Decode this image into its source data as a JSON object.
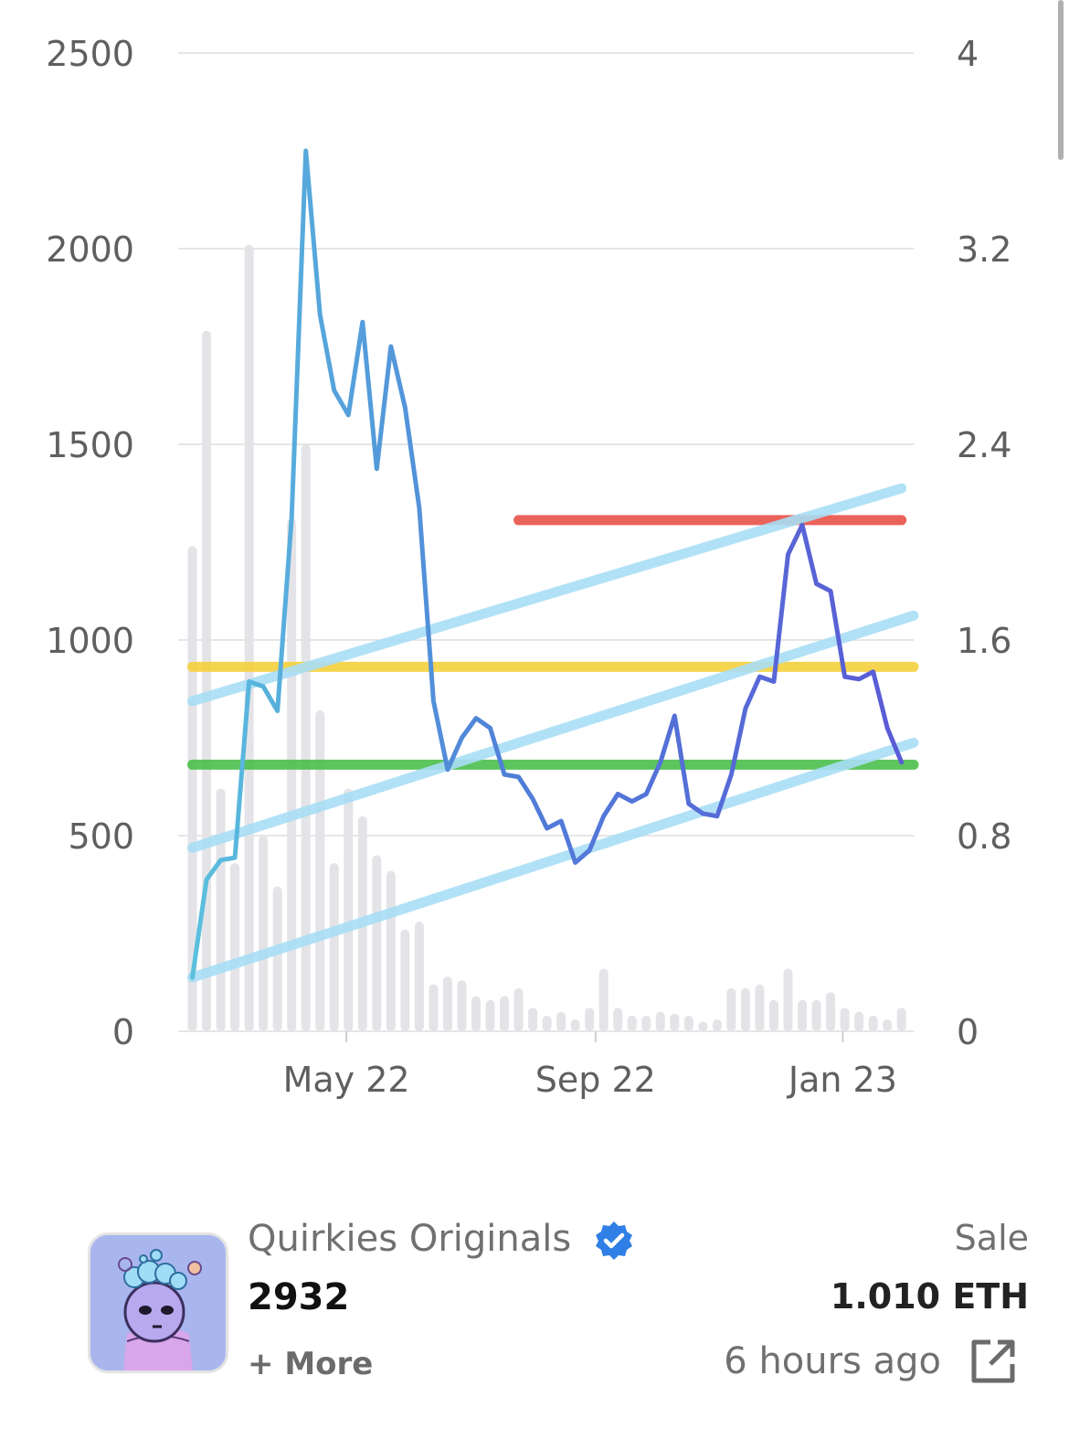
{
  "chart_data": {
    "type": "line",
    "left_axis": {
      "ticks": [
        0,
        500,
        1000,
        1500,
        2000,
        2500
      ],
      "range": [
        0,
        2500
      ]
    },
    "right_axis": {
      "ticks": [
        0,
        0.8,
        1.6,
        2.4,
        3.2,
        4
      ],
      "range": [
        0,
        4
      ]
    },
    "x_axis": {
      "ticks": [
        "May 22",
        "Sep 22",
        "Jan 23"
      ],
      "range": [
        "2022-02-07",
        "2023-02-05"
      ]
    },
    "grid": true,
    "series": [
      {
        "axis": "right",
        "color": "#5b5bd6",
        "points": [
          [
            "2022-02-14",
            0.22
          ],
          [
            "2022-02-21",
            0.62
          ],
          [
            "2022-02-28",
            0.7
          ],
          [
            "2022-03-07",
            0.71
          ],
          [
            "2022-03-14",
            1.43
          ],
          [
            "2022-03-21",
            1.41
          ],
          [
            "2022-03-28",
            1.31
          ],
          [
            "2022-04-04",
            2.1
          ],
          [
            "2022-04-11",
            3.6
          ],
          [
            "2022-04-18",
            2.93
          ],
          [
            "2022-04-25",
            2.62
          ],
          [
            "2022-05-02",
            2.52
          ],
          [
            "2022-05-09",
            2.9
          ],
          [
            "2022-05-16",
            2.3
          ],
          [
            "2022-05-23",
            2.8
          ],
          [
            "2022-05-30",
            2.55
          ],
          [
            "2022-06-06",
            2.14
          ],
          [
            "2022-06-13",
            1.35
          ],
          [
            "2022-06-20",
            1.07
          ],
          [
            "2022-06-27",
            1.2
          ],
          [
            "2022-07-04",
            1.28
          ],
          [
            "2022-07-11",
            1.24
          ],
          [
            "2022-07-18",
            1.05
          ],
          [
            "2022-07-25",
            1.04
          ],
          [
            "2022-08-01",
            0.95
          ],
          [
            "2022-08-08",
            0.83
          ],
          [
            "2022-08-15",
            0.86
          ],
          [
            "2022-08-22",
            0.69
          ],
          [
            "2022-08-29",
            0.74
          ],
          [
            "2022-09-05",
            0.88
          ],
          [
            "2022-09-12",
            0.97
          ],
          [
            "2022-09-19",
            0.94
          ],
          [
            "2022-09-26",
            0.97
          ],
          [
            "2022-10-03",
            1.1
          ],
          [
            "2022-10-10",
            1.29
          ],
          [
            "2022-10-17",
            0.93
          ],
          [
            "2022-10-24",
            0.89
          ],
          [
            "2022-10-31",
            0.88
          ],
          [
            "2022-11-07",
            1.05
          ],
          [
            "2022-11-14",
            1.32
          ],
          [
            "2022-11-21",
            1.45
          ],
          [
            "2022-11-28",
            1.43
          ],
          [
            "2022-12-05",
            1.95
          ],
          [
            "2022-12-12",
            2.07
          ],
          [
            "2022-12-19",
            1.83
          ],
          [
            "2022-12-26",
            1.8
          ],
          [
            "2023-01-02",
            1.45
          ],
          [
            "2023-01-09",
            1.44
          ],
          [
            "2023-01-16",
            1.47
          ],
          [
            "2023-01-23",
            1.24
          ],
          [
            "2023-01-30",
            1.1
          ]
        ]
      }
    ],
    "bars": {
      "axis": "left",
      "color": "#e4e4e8",
      "points": [
        [
          "2022-02-14",
          1240
        ],
        [
          "2022-02-21",
          1790
        ],
        [
          "2022-02-28",
          620
        ],
        [
          "2022-03-07",
          430
        ],
        [
          "2022-03-14",
          2010
        ],
        [
          "2022-03-21",
          500
        ],
        [
          "2022-03-28",
          370
        ],
        [
          "2022-04-04",
          1310
        ],
        [
          "2022-04-11",
          1500
        ],
        [
          "2022-04-18",
          820
        ],
        [
          "2022-04-25",
          430
        ],
        [
          "2022-05-02",
          620
        ],
        [
          "2022-05-09",
          550
        ],
        [
          "2022-05-16",
          450
        ],
        [
          "2022-05-23",
          410
        ],
        [
          "2022-05-30",
          260
        ],
        [
          "2022-06-06",
          280
        ],
        [
          "2022-06-13",
          120
        ],
        [
          "2022-06-20",
          140
        ],
        [
          "2022-06-27",
          130
        ],
        [
          "2022-07-04",
          90
        ],
        [
          "2022-07-11",
          80
        ],
        [
          "2022-07-18",
          90
        ],
        [
          "2022-07-25",
          110
        ],
        [
          "2022-08-01",
          60
        ],
        [
          "2022-08-08",
          40
        ],
        [
          "2022-08-15",
          50
        ],
        [
          "2022-08-22",
          30
        ],
        [
          "2022-08-29",
          60
        ],
        [
          "2022-09-05",
          160
        ],
        [
          "2022-09-12",
          60
        ],
        [
          "2022-09-19",
          40
        ],
        [
          "2022-09-26",
          40
        ],
        [
          "2022-10-03",
          50
        ],
        [
          "2022-10-10",
          45
        ],
        [
          "2022-10-17",
          40
        ],
        [
          "2022-10-24",
          25
        ],
        [
          "2022-10-31",
          30
        ],
        [
          "2022-11-07",
          110
        ],
        [
          "2022-11-14",
          110
        ],
        [
          "2022-11-21",
          120
        ],
        [
          "2022-11-28",
          80
        ],
        [
          "2022-12-05",
          160
        ],
        [
          "2022-12-12",
          80
        ],
        [
          "2022-12-19",
          80
        ],
        [
          "2022-12-26",
          100
        ],
        [
          "2023-01-02",
          60
        ],
        [
          "2023-01-09",
          50
        ],
        [
          "2023-01-16",
          40
        ],
        [
          "2023-01-23",
          30
        ],
        [
          "2023-01-30",
          60
        ]
      ]
    },
    "annotations": [
      {
        "kind": "horizontal",
        "axis": "right",
        "y": 2.09,
        "from": "2022-07-25",
        "to": "2023-01-30",
        "color": "#e8534a"
      },
      {
        "kind": "horizontal",
        "axis": "right",
        "y": 1.49,
        "from": "2022-02-14",
        "to": "2023-02-05",
        "color": "#f5d03c"
      },
      {
        "kind": "horizontal",
        "axis": "right",
        "y": 1.09,
        "from": "2022-02-14",
        "to": "2023-02-05",
        "color": "#4cbf4c"
      },
      {
        "kind": "trend",
        "axis": "right",
        "from": [
          "2022-02-14",
          1.35
        ],
        "to": [
          "2023-01-30",
          2.22
        ],
        "color": "#a9def6"
      },
      {
        "kind": "trend",
        "axis": "right",
        "from": [
          "2022-02-14",
          0.75
        ],
        "to": [
          "2023-02-05",
          1.7
        ],
        "color": "#a9def6"
      },
      {
        "kind": "trend",
        "axis": "right",
        "from": [
          "2022-02-14",
          0.22
        ],
        "to": [
          "2023-02-05",
          1.18
        ],
        "color": "#a9def6"
      }
    ]
  },
  "listing": {
    "collection": "Quirkies Originals",
    "token_id": "2932",
    "more": "+ More",
    "sale_label": "Sale",
    "price": "1.010 ETH",
    "time": "6 hours ago",
    "verified_icon": "verified-badge-icon",
    "link_icon": "external-link-icon"
  }
}
